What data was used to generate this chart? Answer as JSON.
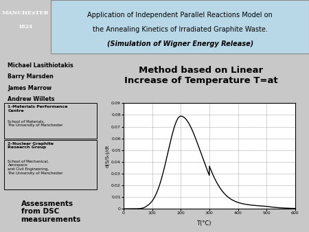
{
  "slide_bg": "#c8c8c8",
  "header_bg": "#b8d8e8",
  "header_text_line1": "Application of Independent Parallel Reactions Model on",
  "header_text_line2": "the Annealing Kinetics of Irradiated Graphite Waste.",
  "header_text_line3": "(Simulation of Wigner Energy Release)",
  "logo_bg": "#6B2090",
  "logo_line1": "MANCHEsTER",
  "logo_line2": "1824",
  "authors_line1": "Michael Lasithiotakis",
  "authors_line2": "Barry Marsden",
  "authors_line3": "James Marrow",
  "authors_line4": "Andrew Willets",
  "affil1_title": "1-Materials Performance\nCentre",
  "affil1_body": "School of Materials,\nThe University of Manchester",
  "affil2_title": "2-Nuclear Graphite\nResearch Group",
  "affil2_body": "School of Mechanical,\nAerospace\nand Civil Engineering,\nThe University of Manchester",
  "assessment_text": "Assessments\nfrom DSC\nmeasurements",
  "assessment_bg": "#00d0ff",
  "method_title": "Method based on Linear\nIncrease of Temperature T=at",
  "xlabel": "T(°C)",
  "ylabel": "d(S/S₀)/dt",
  "xlim": [
    0,
    600
  ],
  "ylim": [
    0,
    0.09
  ],
  "ytick_labels": [
    "0",
    "0.01",
    "0.02",
    "0.03",
    "0.04",
    "0.05",
    "0.06",
    "0.07",
    "0.08",
    "0.09"
  ],
  "ytick_vals": [
    0,
    0.01,
    0.02,
    0.03,
    0.04,
    0.05,
    0.06,
    0.07,
    0.08,
    0.09
  ],
  "xtick_vals": [
    0,
    100,
    200,
    300,
    400,
    500,
    600
  ],
  "xtick_labels": [
    "0",
    "100",
    "200",
    "300",
    "400",
    "500",
    "600"
  ]
}
